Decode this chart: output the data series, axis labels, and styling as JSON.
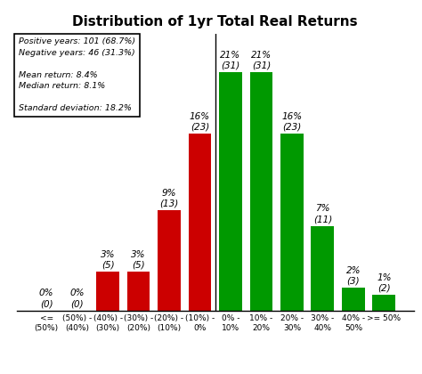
{
  "title": "Distribution of 1yr Total Real Returns",
  "categories": [
    "<=\n(50%)",
    "(50%) -\n(40%)",
    "(40%) -\n(30%)",
    "(30%) -\n(20%)",
    "(20%) -\n(10%)",
    "(10%) -\n0%",
    "0% -\n10%",
    "10% -\n20%",
    "20% -\n30%",
    "30% -\n40%",
    "40% -\n50%",
    ">= 50%"
  ],
  "values": [
    0,
    0,
    5,
    5,
    13,
    23,
    31,
    31,
    23,
    11,
    3,
    2
  ],
  "percentages": [
    0,
    0,
    3,
    3,
    9,
    16,
    21,
    21,
    16,
    7,
    2,
    1
  ],
  "colors": [
    "#cc0000",
    "#cc0000",
    "#cc0000",
    "#cc0000",
    "#cc0000",
    "#cc0000",
    "#009900",
    "#009900",
    "#009900",
    "#009900",
    "#009900",
    "#009900"
  ],
  "legend_text": "Positive years: 101 (68.7%)\nNegative years: 46 (31.3%)\n\nMean return: 8.4%\nMedian return: 8.1%\n\nStandard deviation: 18.2%",
  "bar_width": 0.75,
  "ylim": [
    0,
    36
  ],
  "figsize": [
    4.74,
    4.2
  ],
  "dpi": 100,
  "title_fontsize": 11,
  "tick_fontsize": 6.5,
  "annotation_fontsize": 7.5
}
